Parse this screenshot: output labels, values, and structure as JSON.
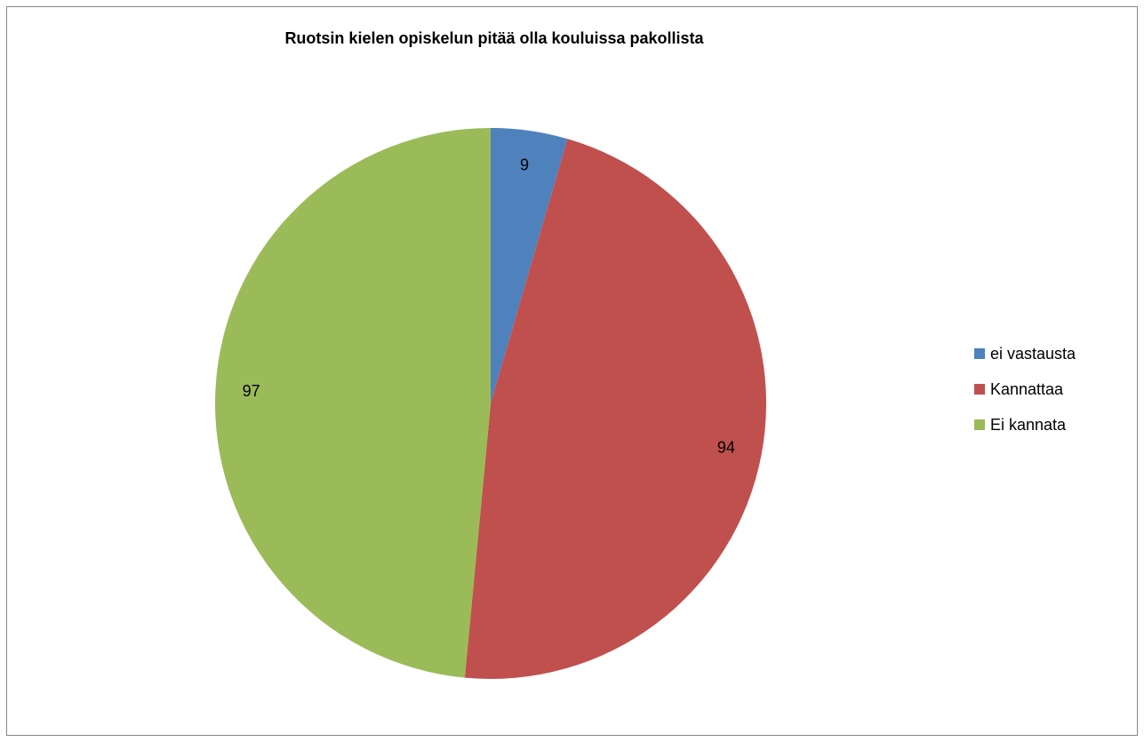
{
  "chart_data": {
    "type": "pie",
    "title": "Ruotsin kielen opiskelun pitää olla kouluissa pakollista",
    "categories": [
      "ei vastausta",
      "Kannattaa",
      "Ei kannata"
    ],
    "values": [
      9,
      94,
      97
    ],
    "colors": [
      "#4F81BD",
      "#C0504D",
      "#9BBB59"
    ],
    "start_angle_deg": 0,
    "direction": "clockwise",
    "data_labels": [
      "9",
      "94",
      "97"
    ],
    "legend_position": "right"
  }
}
